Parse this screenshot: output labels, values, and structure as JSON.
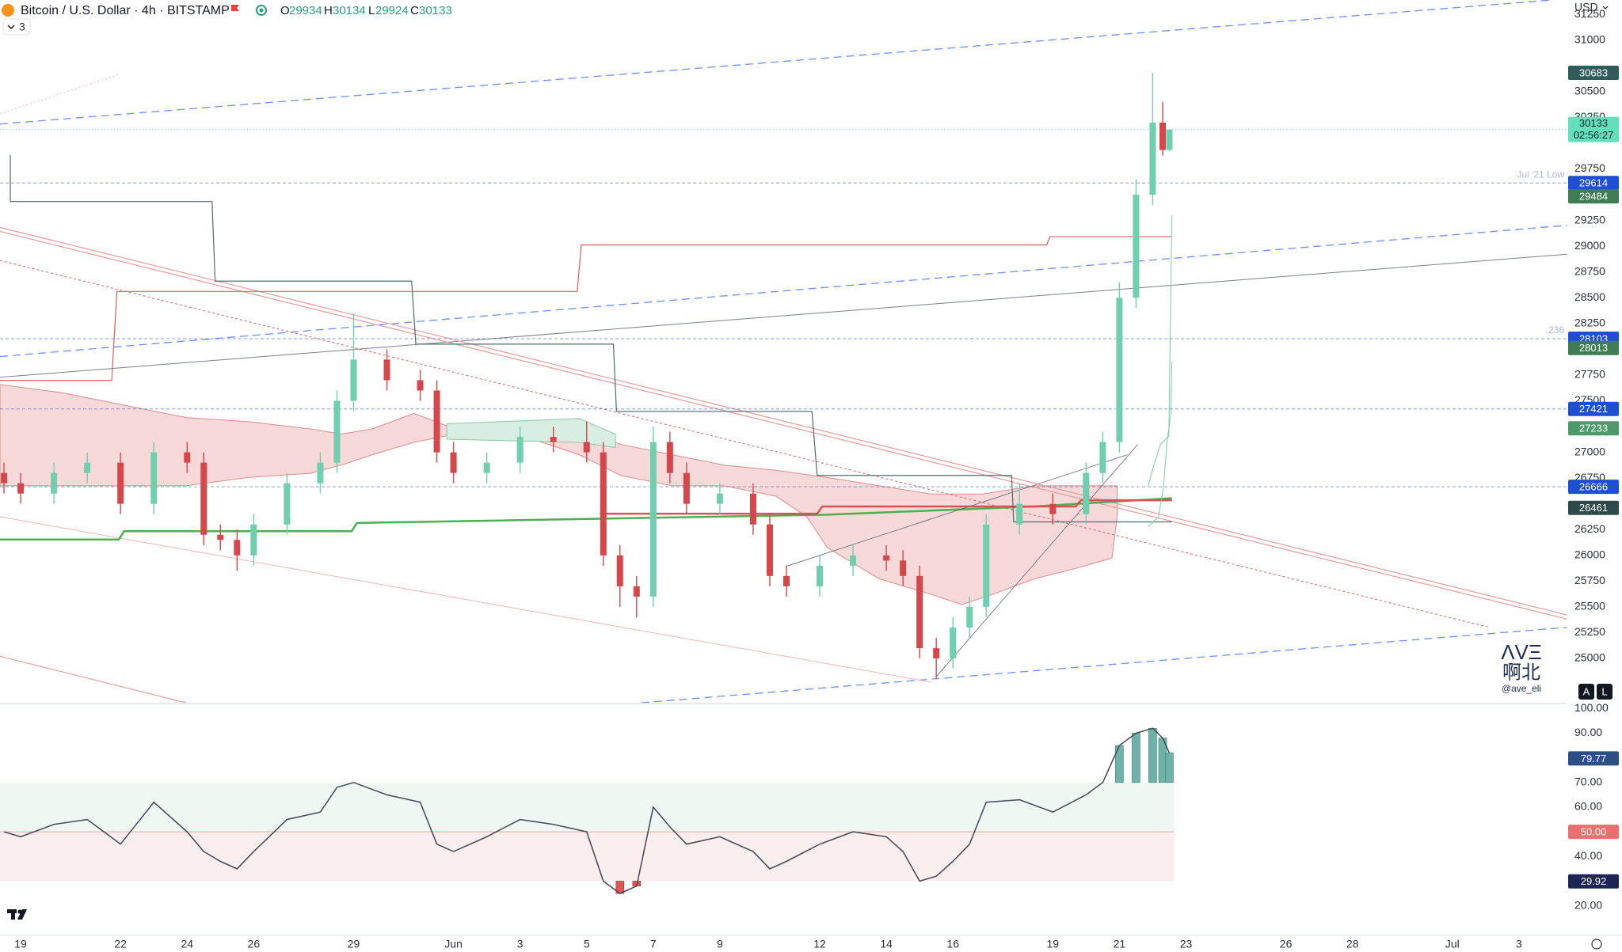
{
  "header": {
    "symbol": "Bitcoin / U.S. Dollar · 4h · BITSTAMP",
    "o": "O",
    "h": "H",
    "l": "L",
    "c": "C",
    "indicators": "3"
  },
  "axis_currency": "USD",
  "watermark": {
    "logo": "ΛVΞ",
    "name": "啊北",
    "handle": "@ave_eli"
  },
  "buttons": [
    "A",
    "L"
  ],
  "chart_data": [
    {
      "type": "candlestick",
      "x": [
        18.5,
        19,
        20,
        21,
        22,
        23,
        24,
        24.5,
        25,
        25.5,
        26,
        27,
        28,
        28.5,
        29,
        30,
        31,
        31.5,
        32,
        33,
        34,
        35,
        36,
        36.5,
        37,
        37.5,
        38,
        38.5,
        39,
        40,
        41,
        41.5,
        42,
        43,
        44,
        45,
        45.5,
        46,
        46.5,
        47,
        47.5,
        48,
        49,
        50,
        51,
        51.5,
        52,
        52.5,
        53,
        53.3,
        53.5
      ],
      "open": [
        26800,
        26700,
        26600,
        26800,
        26900,
        26500,
        27000,
        26900,
        26200,
        26150,
        26000,
        26300,
        26700,
        26900,
        27500,
        27900,
        27700,
        27600,
        27000,
        26800,
        26900,
        27150,
        27100,
        27000,
        26000,
        25700,
        25600,
        27100,
        26800,
        26500,
        26600,
        26300,
        25800,
        25700,
        25900,
        26000,
        25950,
        25800,
        25100,
        25000,
        25300,
        25500,
        26300,
        26500,
        26400,
        26800,
        27100,
        28500,
        29500,
        30200,
        29934
      ],
      "high": [
        26900,
        26800,
        26900,
        27000,
        27000,
        27100,
        27100,
        27000,
        26300,
        26250,
        26400,
        26800,
        27000,
        27600,
        28350,
        28000,
        27800,
        27700,
        27100,
        27000,
        27250,
        27250,
        27300,
        27100,
        26100,
        25800,
        27250,
        27200,
        26900,
        26700,
        26700,
        26400,
        25900,
        26000,
        26100,
        26100,
        26050,
        25900,
        25200,
        25400,
        25600,
        26400,
        26700,
        26600,
        26900,
        27200,
        28650,
        29650,
        30683,
        30400,
        30134
      ],
      "low": [
        26600,
        26500,
        26500,
        26700,
        26400,
        26400,
        26800,
        26100,
        26050,
        25850,
        25900,
        26200,
        26600,
        26800,
        27400,
        27600,
        27500,
        26900,
        26700,
        26700,
        26800,
        27000,
        26900,
        25900,
        25500,
        25400,
        25500,
        26700,
        26400,
        26400,
        26200,
        25700,
        25600,
        25600,
        25800,
        25850,
        25700,
        25000,
        24800,
        24900,
        25200,
        25400,
        26200,
        26300,
        26300,
        26700,
        27000,
        28400,
        29400,
        29880,
        29924
      ],
      "close": [
        26700,
        26600,
        26800,
        26900,
        26500,
        27000,
        26900,
        26200,
        26150,
        26000,
        26300,
        26700,
        26900,
        27500,
        27900,
        27700,
        27600,
        27000,
        26800,
        26900,
        27150,
        27100,
        27000,
        26000,
        25700,
        25600,
        27100,
        26800,
        26500,
        26600,
        26300,
        25800,
        25700,
        25900,
        26000,
        25950,
        25800,
        25100,
        25000,
        25300,
        25500,
        26300,
        26500,
        26400,
        26800,
        27100,
        28500,
        29500,
        30200,
        29934,
        30133
      ],
      "up_color": "#6fcfae",
      "down_color": "#d6474c",
      "xlim": [
        18.38,
        65.43
      ],
      "ylim": [
        24570,
        31390
      ],
      "yticks": [
        25000,
        25250,
        25500,
        25750,
        26000,
        26250,
        26750,
        27000,
        27500,
        27750,
        28250,
        28500,
        28750,
        29000,
        29250,
        29750,
        30250,
        30500,
        31000,
        31250
      ],
      "price_tags": [
        {
          "value": 30683,
          "color": "#2f5c5a",
          "line": false
        },
        {
          "value": 29614,
          "color": "#1f4fd1",
          "line": true,
          "note": "Jul '21 Low"
        },
        {
          "value": 29484,
          "color": "#3f7d55",
          "line": false
        },
        {
          "value": 28103,
          "color": "#1f4fd1",
          "line": true,
          "note": ".236"
        },
        {
          "value": 28013,
          "color": "#3f7d55",
          "line": false
        },
        {
          "value": 27421,
          "color": "#1f4fd1",
          "line": true
        },
        {
          "value": 27233,
          "color": "#4c9a6c",
          "line": false
        },
        {
          "value": 26666,
          "color": "#1f4fd1",
          "line": true
        },
        {
          "value": 26461,
          "color": "#2f4a4a",
          "line": false
        }
      ],
      "last_price": {
        "countdown": "02:56:27",
        "color": "#63e0bb"
      }
    },
    {
      "type": "line",
      "x": [
        18.5,
        19,
        20,
        21,
        22,
        23,
        24,
        24.5,
        25,
        25.5,
        26,
        27,
        28,
        28.5,
        29,
        30,
        31,
        31.5,
        32,
        33,
        34,
        35,
        36,
        36.5,
        37,
        37.5,
        38,
        38.5,
        39,
        40,
        41,
        41.5,
        42,
        43,
        44,
        45,
        45.5,
        46,
        46.5,
        47,
        47.5,
        48,
        49,
        50,
        51,
        51.5,
        52,
        52.5,
        53,
        53.3,
        53.5
      ],
      "values": [
        50,
        48,
        53,
        55,
        45,
        62,
        50,
        42,
        38,
        35,
        42,
        55,
        58,
        68,
        70,
        65,
        62,
        45,
        42,
        48,
        55,
        53,
        50,
        30,
        25,
        28,
        60,
        52,
        45,
        48,
        42,
        35,
        38,
        45,
        50,
        48,
        42,
        30,
        32,
        38,
        45,
        62,
        63,
        58,
        65,
        70,
        85,
        90,
        92,
        88,
        82
      ],
      "color": "#4a4f5a",
      "xlim": [
        18.38,
        65.43
      ],
      "ylim": [
        8,
        101.7
      ],
      "bands": [
        30,
        50,
        70
      ],
      "yticks": [
        {
          "value": 20,
          "label": "20.00"
        },
        {
          "value": 40,
          "label": "40.00"
        },
        {
          "value": 60,
          "label": "60.00"
        },
        {
          "value": 70,
          "label": "70.00"
        },
        {
          "value": 90,
          "label": "90.00"
        },
        {
          "value": 100,
          "label": "100.00"
        }
      ],
      "xticks": [
        {
          "value": 19,
          "label": "19"
        },
        {
          "value": 22,
          "label": "22"
        },
        {
          "value": 24,
          "label": "24"
        },
        {
          "value": 26,
          "label": "26"
        },
        {
          "value": 29,
          "label": "29"
        },
        {
          "value": 32,
          "label": "Jun"
        },
        {
          "value": 34,
          "label": "3"
        },
        {
          "value": 36,
          "label": "5"
        },
        {
          "value": 38,
          "label": "7"
        },
        {
          "value": 40,
          "label": "9"
        },
        {
          "value": 43,
          "label": "12"
        },
        {
          "value": 45,
          "label": "14"
        },
        {
          "value": 47,
          "label": "16"
        },
        {
          "value": 50,
          "label": "19"
        },
        {
          "value": 52,
          "label": "21"
        },
        {
          "value": 54,
          "label": "23"
        },
        {
          "value": 57,
          "label": "26"
        },
        {
          "value": 59,
          "label": "28"
        },
        {
          "value": 62,
          "label": "Jul"
        },
        {
          "value": 64,
          "label": "3"
        }
      ],
      "tags": [
        {
          "value": 79.77,
          "color": "#2c4f86"
        },
        {
          "value": 50,
          "label": "50.00",
          "color": "#e8706f"
        },
        {
          "value": 29.92,
          "color": "#1e2556"
        }
      ]
    }
  ]
}
